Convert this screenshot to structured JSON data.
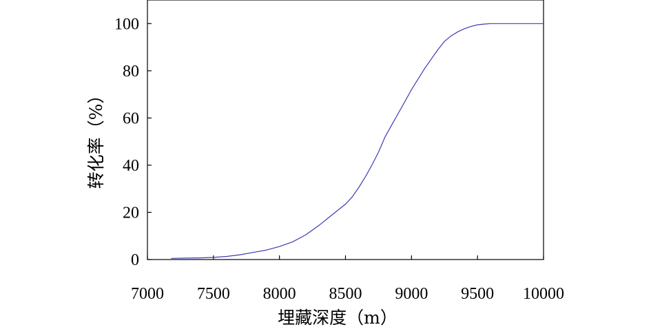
{
  "chart_data": {
    "type": "line",
    "title": "",
    "xlabel": "埋藏深度（m）",
    "ylabel": "转化率（%）",
    "xlim": [
      7000,
      10000
    ],
    "ylim": [
      0,
      110
    ],
    "x_ticks": [
      7000,
      7500,
      8000,
      8500,
      9000,
      9500,
      10000
    ],
    "y_ticks": [
      0,
      20,
      40,
      60,
      80,
      100
    ],
    "grid": false,
    "legend": "none",
    "series": [
      {
        "color": "#3b3bb0",
        "x": [
          7180,
          7300,
          7400,
          7500,
          7600,
          7700,
          7800,
          7900,
          8000,
          8100,
          8200,
          8300,
          8400,
          8500,
          8550,
          8600,
          8650,
          8700,
          8750,
          8800,
          8850,
          8900,
          8950,
          9000,
          9050,
          9100,
          9150,
          9200,
          9250,
          9300,
          9350,
          9400,
          9450,
          9500,
          9550,
          9600,
          9700,
          9800,
          10000
        ],
        "y": [
          0.5,
          0.6,
          0.7,
          0.9,
          1.3,
          2.0,
          3.0,
          4.0,
          5.5,
          7.5,
          10.5,
          14.5,
          19.0,
          23.5,
          26.5,
          30.5,
          35.0,
          40.0,
          45.5,
          52.0,
          57.0,
          62.0,
          67.0,
          72.0,
          76.5,
          81.0,
          85.0,
          89.0,
          92.5,
          94.8,
          96.5,
          97.8,
          98.8,
          99.5,
          99.8,
          100,
          100,
          100,
          100
        ]
      }
    ]
  }
}
